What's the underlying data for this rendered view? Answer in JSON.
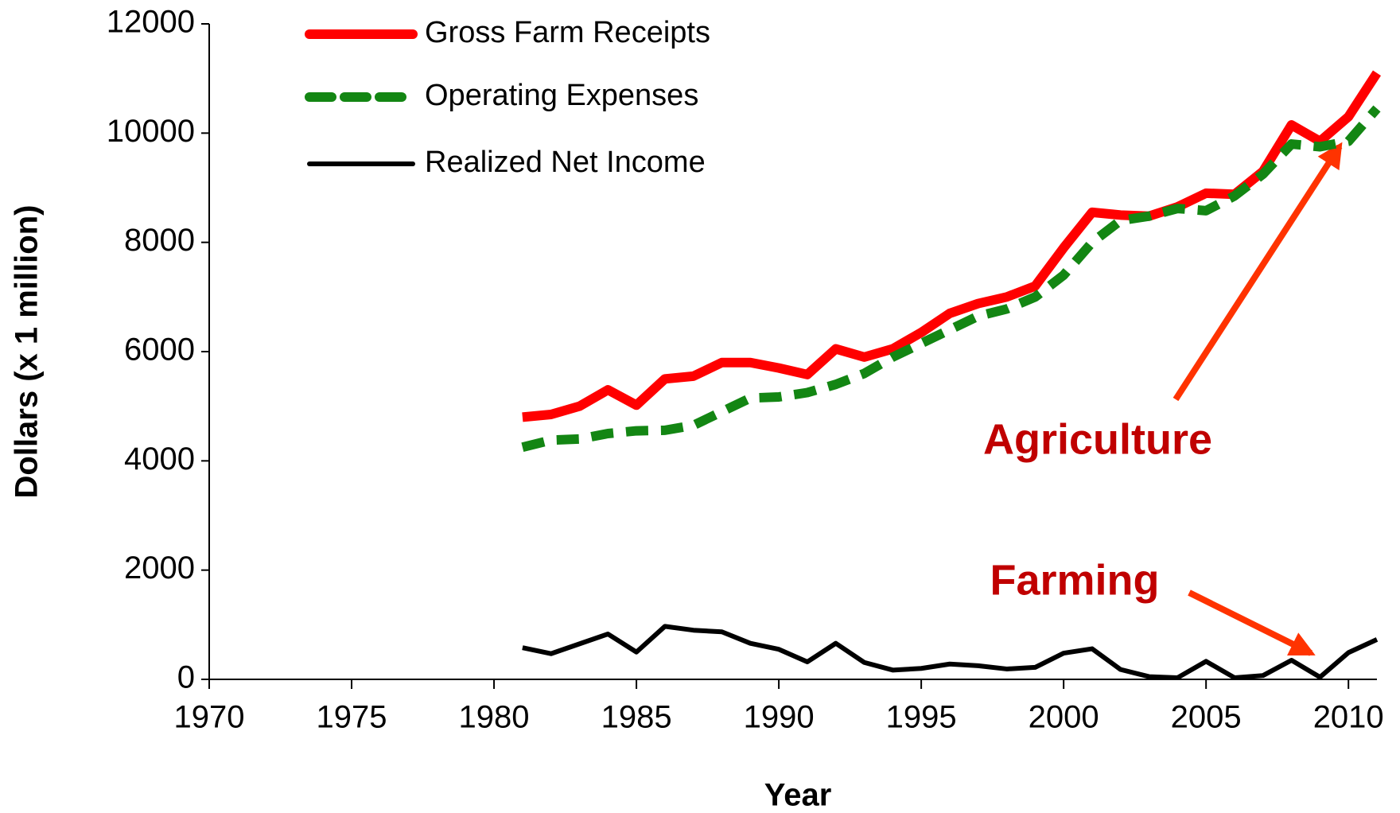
{
  "chart_data": {
    "type": "line",
    "xlabel": "Year",
    "ylabel": "Dollars (x 1 million)",
    "x": [
      1981,
      1982,
      1983,
      1984,
      1985,
      1986,
      1987,
      1988,
      1989,
      1990,
      1991,
      1992,
      1993,
      1994,
      1995,
      1996,
      1997,
      1998,
      1999,
      2000,
      2001,
      2002,
      2003,
      2004,
      2005,
      2006,
      2007,
      2008,
      2009,
      2010,
      2011
    ],
    "series": [
      {
        "name": "Gross Farm Receipts",
        "color": "#ff0000",
        "dash": "solid",
        "values": [
          4800,
          4850,
          5000,
          5300,
          5020,
          5500,
          5550,
          5800,
          5800,
          5700,
          5580,
          6050,
          5900,
          6050,
          6350,
          6700,
          6880,
          7000,
          7200,
          7900,
          8550,
          8500,
          8480,
          8650,
          8900,
          8880,
          9300,
          10150,
          9850,
          10300,
          11100
        ]
      },
      {
        "name": "Operating Expenses",
        "color": "#138613",
        "dash": "dashed",
        "values": [
          4250,
          4380,
          4400,
          4500,
          4550,
          4560,
          4650,
          4900,
          5150,
          5170,
          5250,
          5400,
          5600,
          5900,
          6150,
          6400,
          6650,
          6780,
          7000,
          7400,
          8000,
          8400,
          8480,
          8620,
          8580,
          8850,
          9250,
          9800,
          9750,
          9850,
          10450
        ]
      },
      {
        "name": "Realized Net Income",
        "color": "#000000",
        "dash": "solid",
        "values": [
          580,
          470,
          650,
          830,
          500,
          970,
          900,
          870,
          660,
          550,
          320,
          660,
          310,
          170,
          200,
          280,
          250,
          190,
          220,
          480,
          560,
          180,
          50,
          30,
          330,
          30,
          70,
          350,
          40,
          490,
          730
        ]
      }
    ],
    "xlim": [
      1970,
      2011
    ],
    "xticks": [
      1970,
      1975,
      1980,
      1985,
      1990,
      1995,
      2000,
      2005,
      2010
    ],
    "ylim": [
      0,
      12000
    ],
    "yticks": [
      0,
      2000,
      4000,
      6000,
      8000,
      10000,
      12000
    ],
    "legend": "upper left",
    "annotations": [
      "Agriculture",
      "Farming"
    ]
  }
}
